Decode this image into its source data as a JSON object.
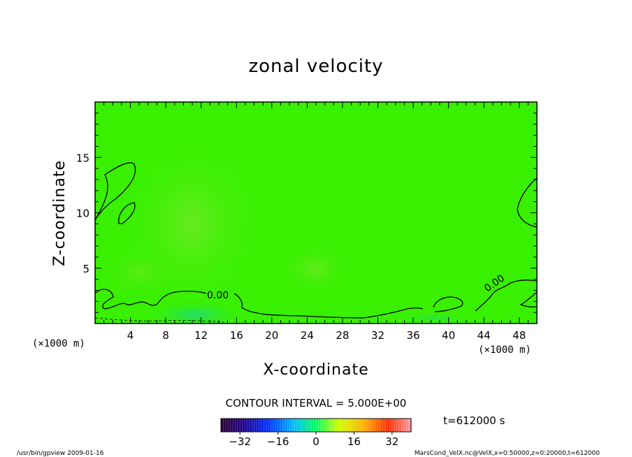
{
  "chart_data": {
    "type": "heatmap",
    "title": "zonal velocity",
    "xlabel": "X-coordinate",
    "ylabel": "Z-coordinate",
    "x_unit": "(×1000 m)",
    "y_unit": "(×1000 m)",
    "xlim": [
      0,
      50
    ],
    "ylim": [
      0,
      20
    ],
    "x_ticks": [
      4,
      8,
      12,
      16,
      20,
      24,
      28,
      32,
      36,
      40,
      44,
      48
    ],
    "y_ticks": [
      5,
      10,
      15
    ],
    "contour_interval": "CONTOUR INTERVAL = 5.000E+00",
    "contour_labels": [
      "0.00",
      "0.00"
    ],
    "time_label": "t=612000 s",
    "colorbar": {
      "min": -40,
      "max": 40,
      "ticks": [
        -32,
        -16,
        0,
        16,
        32
      ],
      "colors": [
        "#2a0030",
        "#20008a",
        "#0030ff",
        "#00b8ff",
        "#00ff60",
        "#d0ff00",
        "#ffb000",
        "#ff3000",
        "#ff9aa0"
      ]
    },
    "field_colors": {
      "background": "#39f000",
      "warm": "#7ee830",
      "cool": "#28e06a"
    }
  },
  "footer": {
    "left": "/usr/bin/gpview   2009-01-16",
    "right": "MarsCond_VelX.nc@VelX,x=0:50000,z=0:20000,t=612000"
  }
}
